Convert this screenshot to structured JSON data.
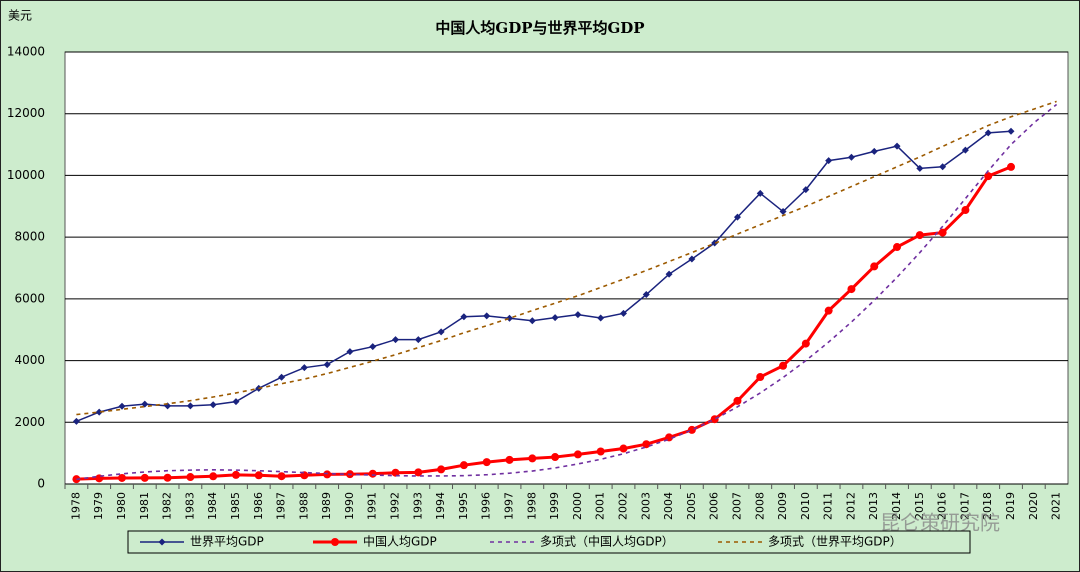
{
  "chart_data": {
    "type": "line",
    "title": "中国人均GDP与世界平均GDP",
    "y_label": "美元",
    "watermark": "昆仑策研究院",
    "categories": [
      "1978",
      "1979",
      "1980",
      "1981",
      "1982",
      "1983",
      "1984",
      "1985",
      "1986",
      "1987",
      "1988",
      "1989",
      "1990",
      "1991",
      "1992",
      "1993",
      "1994",
      "1995",
      "1996",
      "1997",
      "1998",
      "1999",
      "2000",
      "2001",
      "2002",
      "2003",
      "2004",
      "2005",
      "2006",
      "2007",
      "2008",
      "2009",
      "2010",
      "2011",
      "2012",
      "2013",
      "2014",
      "2015",
      "2016",
      "2017",
      "2018",
      "2019",
      "2020",
      "2021"
    ],
    "series": [
      {
        "name": "世界平均GDP",
        "color": "#1a237e",
        "marker": "diamond",
        "dashed": false,
        "values": [
          2030,
          2330,
          2520,
          2590,
          2530,
          2530,
          2570,
          2670,
          3100,
          3460,
          3770,
          3870,
          4290,
          4450,
          4680,
          4680,
          4930,
          5420,
          5450,
          5370,
          5290,
          5390,
          5490,
          5380,
          5530,
          6140,
          6800,
          7290,
          7810,
          8650,
          9420,
          8830,
          9540,
          10480,
          10590,
          10780,
          10950,
          10230,
          10280,
          10820,
          11380,
          11430,
          null,
          null
        ]
      },
      {
        "name": "中国人均GDP",
        "color": "#ff0000",
        "marker": "circle",
        "dashed": false,
        "values": [
          156,
          183,
          195,
          197,
          203,
          225,
          250,
          294,
          282,
          252,
          283,
          311,
          318,
          333,
          366,
          377,
          473,
          610,
          709,
          782,
          829,
          873,
          959,
          1053,
          1149,
          1289,
          1509,
          1753,
          2099,
          2694,
          3468,
          3832,
          4550,
          5618,
          6317,
          7051,
          7679,
          8067,
          8148,
          8879,
          9977,
          10276,
          null,
          null
        ]
      },
      {
        "name": "多项式（中国人均GDP）",
        "color": "#7030a0",
        "marker": "none",
        "dashed": true,
        "values": [
          150,
          250,
          330,
          390,
          430,
          450,
          460,
          450,
          430,
          400,
          370,
          340,
          310,
          290,
          270,
          260,
          260,
          270,
          300,
          350,
          420,
          520,
          650,
          800,
          980,
          1200,
          1450,
          1750,
          2100,
          2500,
          2950,
          3450,
          4000,
          4600,
          5250,
          5950,
          6700,
          7500,
          8350,
          9250,
          10150,
          11000,
          11700,
          12300
        ]
      },
      {
        "name": "多项式（世界平均GDP）",
        "color": "#9c5a00",
        "marker": "none",
        "dashed": true,
        "values": [
          2250,
          2330,
          2420,
          2510,
          2600,
          2700,
          2820,
          2950,
          3100,
          3250,
          3400,
          3580,
          3780,
          3980,
          4190,
          4420,
          4650,
          4900,
          5130,
          5370,
          5620,
          5860,
          6100,
          6370,
          6640,
          6920,
          7210,
          7500,
          7800,
          8100,
          8400,
          8700,
          9000,
          9320,
          9640,
          9960,
          10280,
          10600,
          10940,
          11280,
          11620,
          11900,
          12150,
          12400
        ]
      }
    ],
    "ylim": [
      0,
      14000
    ],
    "yticks": [
      0,
      2000,
      4000,
      6000,
      8000,
      10000,
      12000,
      14000
    ],
    "grid": true,
    "legend": "bottom"
  }
}
